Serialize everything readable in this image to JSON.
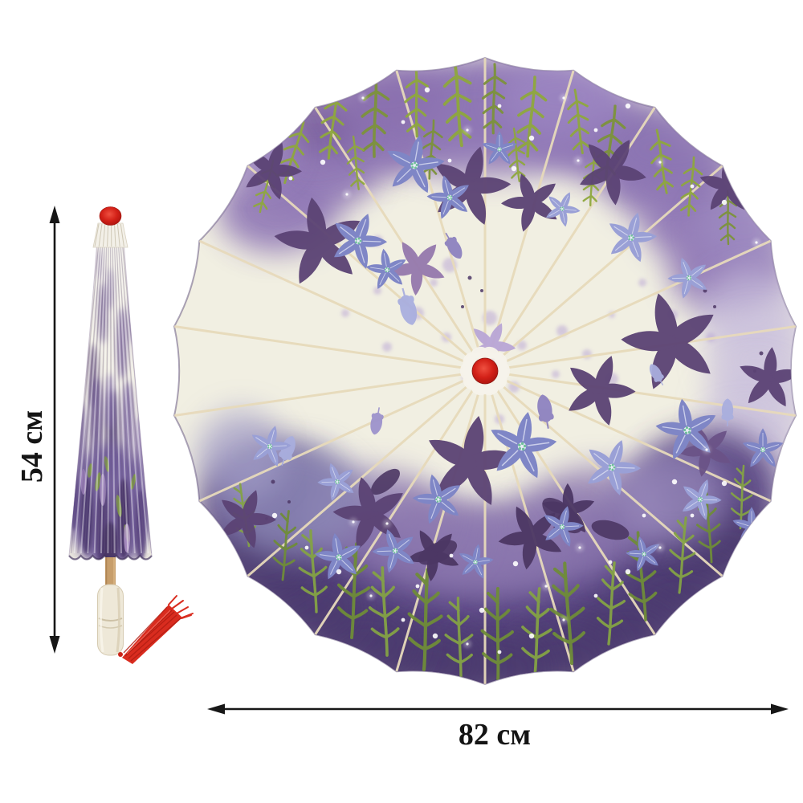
{
  "illustration": {
    "left_view": "closed-parasol-side-view",
    "right_view": "open-parasol-top-view",
    "motif": "purple-bellflowers-and-wisteria-print",
    "hub": "red-center-hub",
    "cap": "red-top-cap",
    "handle": "wooden-white-handle",
    "tassel": "red-tassel"
  },
  "dimensions": {
    "closed_height_label": "54 см",
    "open_diameter_label": "82 см",
    "unit": "см"
  },
  "colors": {
    "background": "#ffffff",
    "annotation": "#171717",
    "hub_red": "#d32118",
    "cap_red": "#cf2a1e",
    "tassel_red": "#d92c1f",
    "canopy_ivory": "#f1efe2",
    "rib_cream": "#e7dabb",
    "purple_band": "#8f77b5",
    "purple_deep": "#5c4a84",
    "purple_dark": "#4c3b6e",
    "lavender_light": "#c9bfdd",
    "slate_blue": "#8e8ab8",
    "flower_silhouette": "#5b4374",
    "flower_mauve": "#9579ad",
    "flower_blue": "#7f86c6",
    "flower_blue_light": "#9aa0d6",
    "leaf_green": "#8ea83c",
    "stem_green": "#84a244",
    "wood_tan": "#c79e6b",
    "handle_cream": "#eee8d8",
    "speckle_purple": "#b7a3d4",
    "sparkle_white": "#ffffff"
  }
}
